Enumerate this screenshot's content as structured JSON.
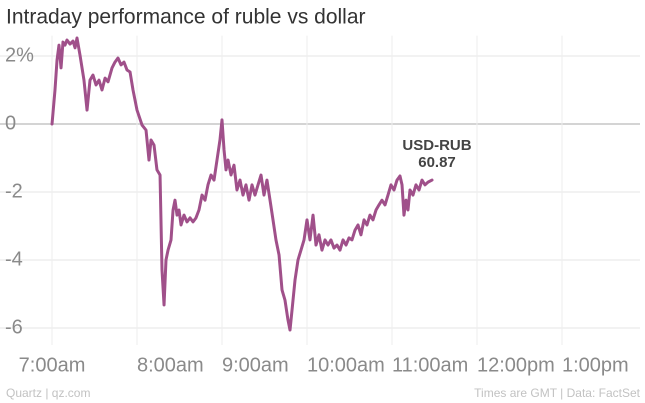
{
  "chart_data": {
    "type": "line",
    "title": "Intraday performance of ruble vs dollar",
    "x": [
      7.0,
      7.035,
      7.059,
      7.082,
      7.106,
      7.129,
      7.153,
      7.176,
      7.212,
      7.247,
      7.271,
      7.294,
      7.329,
      7.376,
      7.412,
      7.447,
      7.482,
      7.518,
      7.553,
      7.588,
      7.624,
      7.659,
      7.706,
      7.741,
      7.776,
      7.812,
      7.847,
      7.882,
      7.918,
      7.953,
      8.0,
      8.059,
      8.106,
      8.141,
      8.165,
      8.2,
      8.235,
      8.271,
      8.294,
      8.318,
      8.341,
      8.365,
      8.4,
      8.424,
      8.447,
      8.471,
      8.494,
      8.518,
      8.553,
      8.588,
      8.624,
      8.659,
      8.694,
      8.729,
      8.765,
      8.8,
      8.835,
      8.871,
      8.906,
      8.941,
      8.976,
      9.0,
      9.024,
      9.047,
      9.071,
      9.106,
      9.141,
      9.176,
      9.212,
      9.247,
      9.282,
      9.318,
      9.353,
      9.388,
      9.424,
      9.459,
      9.494,
      9.529,
      9.565,
      9.6,
      9.635,
      9.671,
      9.706,
      9.741,
      9.776,
      9.8,
      9.824,
      9.859,
      9.894,
      9.929,
      9.965,
      10.0,
      10.035,
      10.071,
      10.106,
      10.141,
      10.176,
      10.212,
      10.247,
      10.282,
      10.318,
      10.353,
      10.388,
      10.424,
      10.459,
      10.494,
      10.529,
      10.565,
      10.6,
      10.635,
      10.671,
      10.706,
      10.741,
      10.776,
      10.812,
      10.847,
      10.882,
      10.918,
      10.953,
      10.988,
      11.024,
      11.059,
      11.094,
      11.118,
      11.141,
      11.165,
      11.188,
      11.212,
      11.247,
      11.282,
      11.318,
      11.353,
      11.388,
      11.424,
      11.471
    ],
    "series": [
      {
        "name": "USD-RUB",
        "color": "#a0508a",
        "values": [
          0,
          1.0,
          1.88,
          2.32,
          1.65,
          2.41,
          2.32,
          2.47,
          2.35,
          2.44,
          2.24,
          2.53,
          2.03,
          1.29,
          0.41,
          1.29,
          1.44,
          1.15,
          1.29,
          1.0,
          1.35,
          1.24,
          1.65,
          1.82,
          1.94,
          1.74,
          1.82,
          1.59,
          1.53,
          1.0,
          0.41,
          -0.03,
          -0.18,
          -1.06,
          -0.47,
          -0.62,
          -1.35,
          -1.5,
          -4.29,
          -5.32,
          -4.0,
          -3.71,
          -3.41,
          -2.53,
          -2.24,
          -2.68,
          -2.53,
          -2.97,
          -2.68,
          -2.88,
          -2.76,
          -2.88,
          -2.76,
          -2.53,
          -2.09,
          -2.24,
          -1.79,
          -1.5,
          -1.65,
          -1.06,
          -0.47,
          0.12,
          -0.76,
          -1.35,
          -1.06,
          -1.5,
          -1.21,
          -1.94,
          -1.65,
          -2.09,
          -1.79,
          -2.24,
          -1.79,
          -2.09,
          -1.79,
          -1.5,
          -2.09,
          -1.65,
          -2.24,
          -2.82,
          -3.41,
          -3.85,
          -4.88,
          -5.18,
          -5.76,
          -6.06,
          -5.47,
          -4.59,
          -4.0,
          -3.71,
          -3.41,
          -2.82,
          -3.41,
          -2.68,
          -3.56,
          -3.26,
          -3.71,
          -3.41,
          -3.56,
          -3.41,
          -3.65,
          -3.56,
          -3.71,
          -3.41,
          -3.56,
          -3.35,
          -3.41,
          -3.12,
          -2.97,
          -3.26,
          -2.82,
          -2.97,
          -2.68,
          -2.82,
          -2.53,
          -2.38,
          -2.24,
          -2.38,
          -2.09,
          -1.79,
          -1.94,
          -1.65,
          -1.53,
          -1.79,
          -2.68,
          -2.24,
          -2.53,
          -1.94,
          -2.09,
          -1.79,
          -1.94,
          -1.65,
          -1.79,
          -1.71,
          -1.65
        ]
      }
    ],
    "annotation": {
      "label": "USD-RUB",
      "value": 60.87
    },
    "xlim": [
      6.388,
      13.918
    ],
    "xticks": [
      {
        "value": 7,
        "label": "7:00am"
      },
      {
        "value": 8,
        "label": "8:00am"
      },
      {
        "value": 9,
        "label": "9:00am"
      },
      {
        "value": 10,
        "label": "10:00am"
      },
      {
        "value": 11,
        "label": "11:00am"
      },
      {
        "value": 12,
        "label": "12:00pm"
      },
      {
        "value": 13,
        "label": "1:00pm"
      }
    ],
    "ylim": [
      -6.5,
      2.6
    ],
    "yticks": [
      {
        "value": 2,
        "label": "2%"
      },
      0,
      -2,
      -4,
      -6
    ],
    "grid": true
  },
  "footer": {
    "source": "Quartz | qz.com",
    "note": "Times are GMT | Data: FactSet"
  }
}
